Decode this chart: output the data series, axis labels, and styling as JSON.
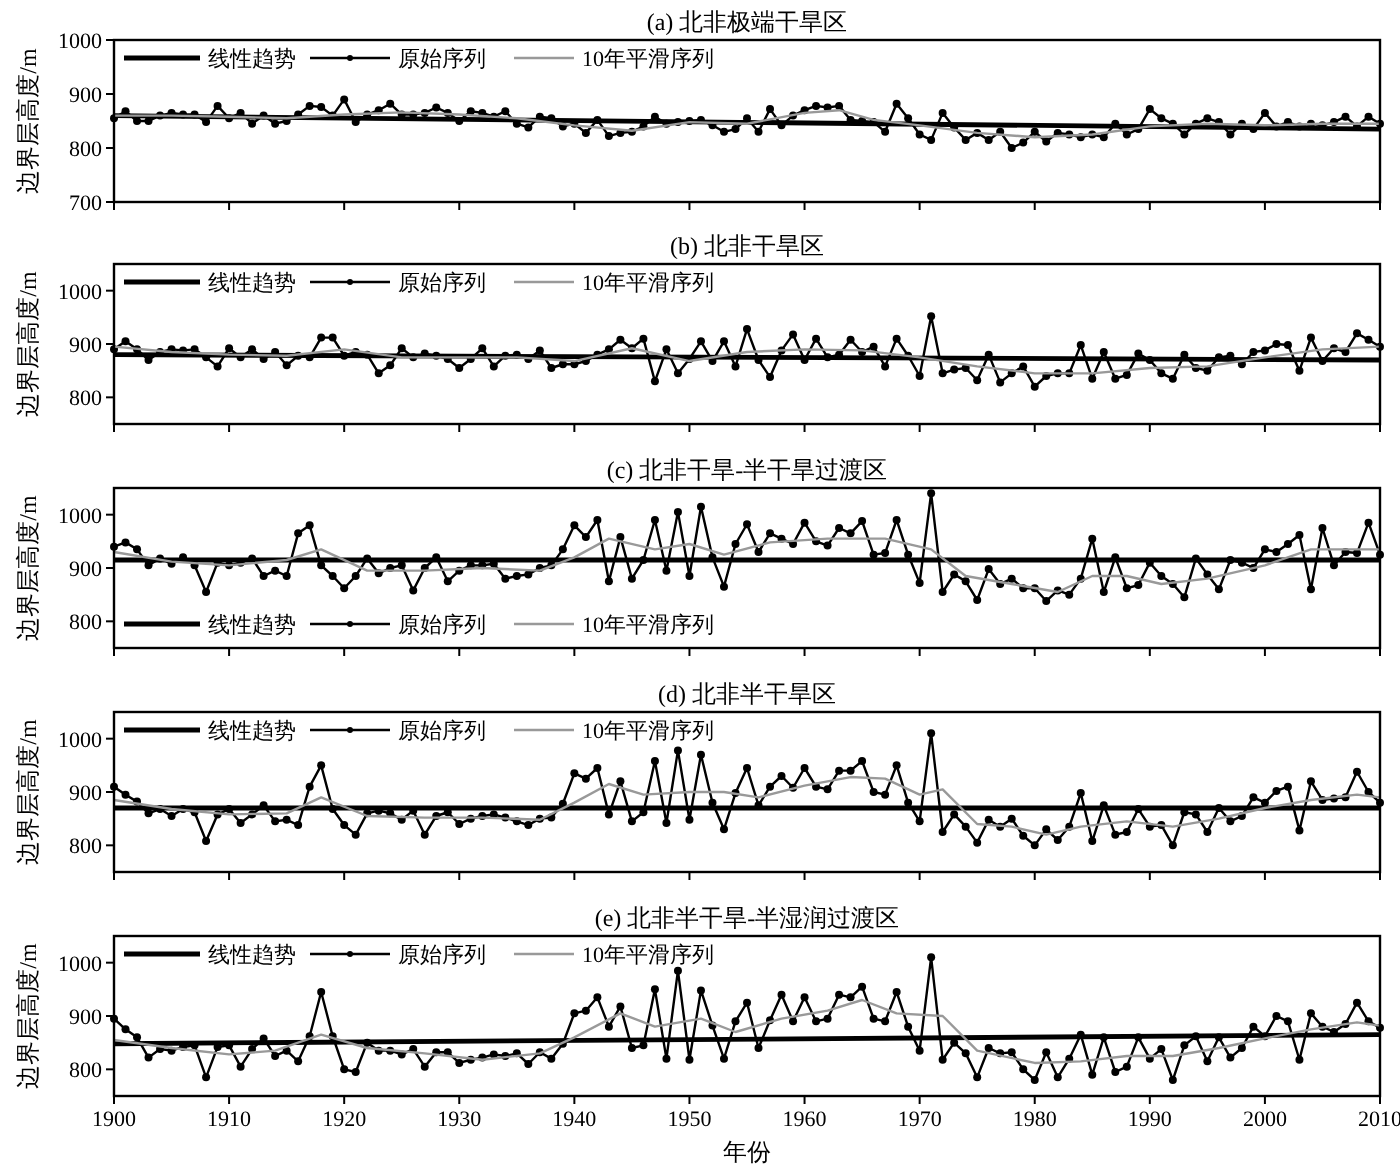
{
  "chart_data": [
    {
      "type": "line",
      "title": "(a) 北非极端干旱区",
      "ylabel": "边界层高度/m",
      "xlim": [
        1900,
        2010
      ],
      "xticks": [
        1900,
        1910,
        1920,
        1930,
        1940,
        1950,
        1960,
        1970,
        1980,
        1990,
        2000,
        2010
      ],
      "ylim": [
        700,
        1000
      ],
      "yticks": [
        700,
        800,
        900,
        1000
      ],
      "tick_labels": "y",
      "legend": "top left",
      "x": [
        1900,
        1901,
        1902,
        1903,
        1904,
        1905,
        1906,
        1907,
        1908,
        1909,
        1910,
        1911,
        1912,
        1913,
        1914,
        1915,
        1916,
        1917,
        1918,
        1919,
        1920,
        1921,
        1922,
        1923,
        1924,
        1925,
        1926,
        1927,
        1928,
        1929,
        1930,
        1931,
        1932,
        1933,
        1934,
        1935,
        1936,
        1937,
        1938,
        1939,
        1940,
        1941,
        1942,
        1943,
        1944,
        1945,
        1946,
        1947,
        1948,
        1949,
        1950,
        1951,
        1952,
        1953,
        1954,
        1955,
        1956,
        1957,
        1958,
        1959,
        1960,
        1961,
        1962,
        1963,
        1964,
        1965,
        1966,
        1967,
        1968,
        1969,
        1970,
        1971,
        1972,
        1973,
        1974,
        1975,
        1976,
        1977,
        1978,
        1979,
        1980,
        1981,
        1982,
        1983,
        1984,
        1985,
        1986,
        1987,
        1988,
        1989,
        1990,
        1991,
        1992,
        1993,
        1994,
        1995,
        1996,
        1997,
        1998,
        1999,
        2000,
        2001,
        2002,
        2003,
        2004,
        2005,
        2006,
        2007,
        2008,
        2009,
        2010
      ],
      "series": [
        {
          "name": "线性趋势",
          "color": "#000000",
          "marker": "none",
          "x": [
            1900,
            2010
          ],
          "values": [
            860,
            835
          ]
        },
        {
          "name": "原始序列",
          "color": "#000000",
          "marker": "circle",
          "values": [
            855,
            868,
            850,
            850,
            860,
            865,
            862,
            862,
            848,
            878,
            855,
            865,
            845,
            860,
            845,
            850,
            862,
            878,
            876,
            860,
            890,
            848,
            862,
            870,
            882,
            862,
            862,
            865,
            875,
            865,
            850,
            868,
            865,
            858,
            868,
            845,
            838,
            858,
            855,
            840,
            845,
            828,
            852,
            822,
            828,
            830,
            840,
            858,
            845,
            848,
            850,
            852,
            842,
            830,
            835,
            855,
            830,
            872,
            842,
            860,
            870,
            878,
            875,
            878,
            852,
            850,
            848,
            830,
            882,
            855,
            825,
            815,
            865,
            838,
            815,
            828,
            815,
            830,
            800,
            810,
            830,
            812,
            828,
            825,
            820,
            825,
            820,
            845,
            825,
            835,
            872,
            855,
            845,
            825,
            845,
            855,
            848,
            825,
            845,
            835,
            865,
            840,
            848,
            840,
            845,
            842,
            848,
            858,
            840,
            858,
            845
          ]
        },
        {
          "name": "10年平滑序列",
          "color": "#999999",
          "marker": "none",
          "x": [
            1900,
            1905,
            1910,
            1915,
            1920,
            1925,
            1930,
            1935,
            1940,
            1945,
            1950,
            1955,
            1960,
            1963,
            1966,
            1970,
            1975,
            1980,
            1985,
            1990,
            1995,
            2000,
            2005,
            2010
          ],
          "values": [
            860,
            860,
            858,
            855,
            862,
            866,
            862,
            855,
            842,
            832,
            848,
            845,
            865,
            870,
            852,
            842,
            828,
            820,
            825,
            840,
            845,
            842,
            845,
            845
          ]
        }
      ]
    },
    {
      "type": "line",
      "title": "(b) 北非干旱区",
      "ylabel": "边界层高度/m",
      "xlim": [
        1900,
        2010
      ],
      "xticks": [
        1900,
        1910,
        1920,
        1930,
        1940,
        1950,
        1960,
        1970,
        1980,
        1990,
        2000,
        2010
      ],
      "ylim": [
        750,
        1050
      ],
      "yticks": [
        800,
        900,
        1000
      ],
      "tick_labels": "y",
      "legend": "top left",
      "x": [
        1900,
        1901,
        1902,
        1903,
        1904,
        1905,
        1906,
        1907,
        1908,
        1909,
        1910,
        1911,
        1912,
        1913,
        1914,
        1915,
        1916,
        1917,
        1918,
        1919,
        1920,
        1921,
        1922,
        1923,
        1924,
        1925,
        1926,
        1927,
        1928,
        1929,
        1930,
        1931,
        1932,
        1933,
        1934,
        1935,
        1936,
        1937,
        1938,
        1939,
        1940,
        1941,
        1942,
        1943,
        1944,
        1945,
        1946,
        1947,
        1948,
        1949,
        1950,
        1951,
        1952,
        1953,
        1954,
        1955,
        1956,
        1957,
        1958,
        1959,
        1960,
        1961,
        1962,
        1963,
        1964,
        1965,
        1966,
        1967,
        1968,
        1969,
        1970,
        1971,
        1972,
        1973,
        1974,
        1975,
        1976,
        1977,
        1978,
        1979,
        1980,
        1981,
        1982,
        1983,
        1984,
        1985,
        1986,
        1987,
        1988,
        1989,
        1990,
        1991,
        1992,
        1993,
        1994,
        1995,
        1996,
        1997,
        1998,
        1999,
        2000,
        2001,
        2002,
        2003,
        2004,
        2005,
        2006,
        2007,
        2008,
        2009,
        2010
      ],
      "series": [
        {
          "name": "线性趋势",
          "color": "#000000",
          "marker": "none",
          "x": [
            1900,
            2010
          ],
          "values": [
            880,
            870
          ]
        },
        {
          "name": "原始序列",
          "color": "#000000",
          "marker": "circle",
          "values": [
            890,
            905,
            890,
            870,
            885,
            890,
            888,
            890,
            875,
            858,
            892,
            875,
            890,
            872,
            885,
            860,
            878,
            875,
            912,
            912,
            878,
            885,
            880,
            845,
            860,
            892,
            875,
            882,
            878,
            872,
            855,
            872,
            892,
            858,
            878,
            880,
            872,
            888,
            855,
            862,
            862,
            868,
            880,
            890,
            908,
            892,
            910,
            830,
            890,
            845,
            872,
            905,
            868,
            905,
            858,
            928,
            870,
            838,
            888,
            918,
            870,
            910,
            875,
            880,
            908,
            885,
            895,
            858,
            910,
            878,
            840,
            952,
            845,
            852,
            855,
            832,
            880,
            828,
            845,
            858,
            820,
            840,
            845,
            845,
            898,
            835,
            885,
            835,
            842,
            882,
            870,
            845,
            835,
            880,
            855,
            850,
            875,
            878,
            862,
            885,
            888,
            900,
            898,
            850,
            912,
            868,
            892,
            885,
            920,
            908,
            895
          ]
        },
        {
          "name": "10年平滑序列",
          "color": "#999999",
          "marker": "none",
          "x": [
            1900,
            1905,
            1910,
            1915,
            1920,
            1925,
            1930,
            1935,
            1940,
            1945,
            1950,
            1955,
            1960,
            1965,
            1970,
            1975,
            1980,
            1985,
            1990,
            1995,
            2000,
            2005,
            2010
          ],
          "values": [
            895,
            885,
            880,
            878,
            890,
            875,
            875,
            875,
            868,
            892,
            868,
            885,
            890,
            888,
            875,
            858,
            845,
            845,
            855,
            858,
            875,
            890,
            895
          ]
        }
      ]
    },
    {
      "type": "line",
      "title": "(c) 北非干旱-半干旱过渡区",
      "ylabel": "边界层高度/m",
      "xlim": [
        1900,
        2010
      ],
      "xticks": [
        1900,
        1910,
        1920,
        1930,
        1940,
        1950,
        1960,
        1970,
        1980,
        1990,
        2000,
        2010
      ],
      "ylim": [
        750,
        1050
      ],
      "yticks": [
        800,
        900,
        1000
      ],
      "tick_labels": "y",
      "legend": "bottom left",
      "x": [
        1900,
        1901,
        1902,
        1903,
        1904,
        1905,
        1906,
        1907,
        1908,
        1909,
        1910,
        1911,
        1912,
        1913,
        1914,
        1915,
        1916,
        1917,
        1918,
        1919,
        1920,
        1921,
        1922,
        1923,
        1924,
        1925,
        1926,
        1927,
        1928,
        1929,
        1930,
        1931,
        1932,
        1933,
        1934,
        1935,
        1936,
        1937,
        1938,
        1939,
        1940,
        1941,
        1942,
        1943,
        1944,
        1945,
        1946,
        1947,
        1948,
        1949,
        1950,
        1951,
        1952,
        1953,
        1954,
        1955,
        1956,
        1957,
        1958,
        1959,
        1960,
        1961,
        1962,
        1963,
        1964,
        1965,
        1966,
        1967,
        1968,
        1969,
        1970,
        1971,
        1972,
        1973,
        1974,
        1975,
        1976,
        1977,
        1978,
        1979,
        1980,
        1981,
        1982,
        1983,
        1984,
        1985,
        1986,
        1987,
        1988,
        1989,
        1990,
        1991,
        1992,
        1993,
        1994,
        1995,
        1996,
        1997,
        1998,
        1999,
        2000,
        2001,
        2002,
        2003,
        2004,
        2005,
        2006,
        2007,
        2008,
        2009,
        2010
      ],
      "series": [
        {
          "name": "线性趋势",
          "color": "#000000",
          "marker": "none",
          "x": [
            1900,
            2010
          ],
          "values": [
            915,
            915
          ]
        },
        {
          "name": "原始序列",
          "color": "#000000",
          "marker": "circle",
          "values": [
            940,
            948,
            935,
            905,
            918,
            908,
            920,
            905,
            855,
            910,
            905,
            910,
            918,
            885,
            895,
            885,
            965,
            980,
            905,
            885,
            862,
            885,
            918,
            890,
            900,
            905,
            858,
            900,
            920,
            875,
            895,
            905,
            905,
            908,
            880,
            885,
            888,
            900,
            905,
            935,
            980,
            958,
            990,
            875,
            958,
            880,
            915,
            990,
            895,
            1005,
            885,
            1015,
            920,
            865,
            945,
            982,
            930,
            965,
            955,
            945,
            985,
            950,
            942,
            975,
            965,
            988,
            925,
            928,
            990,
            925,
            872,
            1040,
            855,
            888,
            875,
            840,
            898,
            870,
            880,
            862,
            862,
            838,
            858,
            850,
            880,
            955,
            855,
            920,
            862,
            868,
            910,
            885,
            870,
            845,
            918,
            888,
            860,
            915,
            910,
            900,
            935,
            930,
            945,
            962,
            860,
            975,
            905,
            930,
            928,
            985,
            925
          ]
        },
        {
          "name": "10年平滑序列",
          "color": "#999999",
          "marker": "none",
          "x": [
            1900,
            1905,
            1910,
            1915,
            1918,
            1922,
            1927,
            1932,
            1937,
            1940,
            1943,
            1947,
            1950,
            1953,
            1957,
            1962,
            1967,
            1971,
            1974,
            1978,
            1982,
            1985,
            1988,
            1991,
            1995,
            2000,
            2004,
            2007,
            2010
          ],
          "values": [
            930,
            912,
            905,
            915,
            935,
            895,
            895,
            900,
            895,
            920,
            955,
            935,
            945,
            925,
            948,
            955,
            955,
            935,
            885,
            870,
            855,
            885,
            885,
            870,
            880,
            905,
            935,
            935,
            935
          ]
        }
      ]
    },
    {
      "type": "line",
      "title": "(d) 北非半干旱区",
      "ylabel": "边界层高度/m",
      "xlim": [
        1900,
        2010
      ],
      "xticks": [
        1900,
        1910,
        1920,
        1930,
        1940,
        1950,
        1960,
        1970,
        1980,
        1990,
        2000,
        2010
      ],
      "ylim": [
        750,
        1050
      ],
      "yticks": [
        800,
        900,
        1000
      ],
      "tick_labels": "y",
      "legend": "top left",
      "x": [
        1900,
        1901,
        1902,
        1903,
        1904,
        1905,
        1906,
        1907,
        1908,
        1909,
        1910,
        1911,
        1912,
        1913,
        1914,
        1915,
        1916,
        1917,
        1918,
        1919,
        1920,
        1921,
        1922,
        1923,
        1924,
        1925,
        1926,
        1927,
        1928,
        1929,
        1930,
        1931,
        1932,
        1933,
        1934,
        1935,
        1936,
        1937,
        1938,
        1939,
        1940,
        1941,
        1942,
        1943,
        1944,
        1945,
        1946,
        1947,
        1948,
        1949,
        1950,
        1951,
        1952,
        1953,
        1954,
        1955,
        1956,
        1957,
        1958,
        1959,
        1960,
        1961,
        1962,
        1963,
        1964,
        1965,
        1966,
        1967,
        1968,
        1969,
        1970,
        1971,
        1972,
        1973,
        1974,
        1975,
        1976,
        1977,
        1978,
        1979,
        1980,
        1981,
        1982,
        1983,
        1984,
        1985,
        1986,
        1987,
        1988,
        1989,
        1990,
        1991,
        1992,
        1993,
        1994,
        1995,
        1996,
        1997,
        1998,
        1999,
        2000,
        2001,
        2002,
        2003,
        2004,
        2005,
        2006,
        2007,
        2008,
        2009,
        2010
      ],
      "series": [
        {
          "name": "线性趋势",
          "color": "#000000",
          "marker": "none",
          "x": [
            1900,
            2010
          ],
          "values": [
            870,
            870
          ]
        },
        {
          "name": "原始序列",
          "color": "#000000",
          "marker": "circle",
          "values": [
            910,
            895,
            882,
            860,
            868,
            855,
            868,
            862,
            808,
            858,
            868,
            842,
            858,
            875,
            845,
            848,
            838,
            910,
            950,
            868,
            838,
            820,
            860,
            865,
            860,
            848,
            865,
            820,
            855,
            862,
            840,
            850,
            855,
            858,
            852,
            845,
            838,
            850,
            852,
            878,
            935,
            925,
            945,
            858,
            920,
            845,
            862,
            958,
            842,
            978,
            848,
            970,
            880,
            830,
            898,
            945,
            875,
            910,
            930,
            908,
            945,
            910,
            905,
            940,
            940,
            958,
            900,
            895,
            950,
            880,
            845,
            1010,
            825,
            858,
            835,
            805,
            848,
            835,
            850,
            818,
            800,
            830,
            810,
            835,
            898,
            808,
            875,
            820,
            825,
            868,
            835,
            838,
            800,
            862,
            858,
            825,
            870,
            845,
            855,
            890,
            880,
            902,
            910,
            828,
            920,
            885,
            888,
            890,
            938,
            900,
            880
          ]
        },
        {
          "name": "10年平滑序列",
          "color": "#999999",
          "marker": "none",
          "x": [
            1900,
            1905,
            1910,
            1915,
            1918,
            1922,
            1927,
            1932,
            1937,
            1940,
            1943,
            1946,
            1950,
            1953,
            1956,
            1960,
            1964,
            1967,
            1970,
            1972,
            1975,
            1978,
            1981,
            1984,
            1988,
            1992,
            1996,
            2000,
            2004,
            2008,
            2010
          ],
          "values": [
            885,
            868,
            858,
            860,
            890,
            855,
            852,
            852,
            848,
            880,
            915,
            895,
            900,
            900,
            890,
            912,
            928,
            925,
            895,
            905,
            840,
            835,
            820,
            835,
            845,
            835,
            850,
            870,
            885,
            895,
            890
          ]
        }
      ]
    },
    {
      "type": "line",
      "title": "(e) 北非半干旱-半湿润过渡区",
      "ylabel": "边界层高度/m",
      "xlabel": "年份",
      "xlim": [
        1900,
        2010
      ],
      "xticks": [
        1900,
        1910,
        1920,
        1930,
        1940,
        1950,
        1960,
        1970,
        1980,
        1990,
        2000,
        2010
      ],
      "ylim": [
        750,
        1050
      ],
      "yticks": [
        800,
        900,
        1000
      ],
      "legend": "top left",
      "x": [
        1900,
        1901,
        1902,
        1903,
        1904,
        1905,
        1906,
        1907,
        1908,
        1909,
        1910,
        1911,
        1912,
        1913,
        1914,
        1915,
        1916,
        1917,
        1918,
        1919,
        1920,
        1921,
        1922,
        1923,
        1924,
        1925,
        1926,
        1927,
        1928,
        1929,
        1930,
        1931,
        1932,
        1933,
        1934,
        1935,
        1936,
        1937,
        1938,
        1939,
        1940,
        1941,
        1942,
        1943,
        1944,
        1945,
        1946,
        1947,
        1948,
        1949,
        1950,
        1951,
        1952,
        1953,
        1954,
        1955,
        1956,
        1957,
        1958,
        1959,
        1960,
        1961,
        1962,
        1963,
        1964,
        1965,
        1966,
        1967,
        1968,
        1969,
        1970,
        1971,
        1972,
        1973,
        1974,
        1975,
        1976,
        1977,
        1978,
        1979,
        1980,
        1981,
        1982,
        1983,
        1984,
        1985,
        1986,
        1987,
        1988,
        1989,
        1990,
        1991,
        1992,
        1993,
        1994,
        1995,
        1996,
        1997,
        1998,
        1999,
        2000,
        2001,
        2002,
        2003,
        2004,
        2005,
        2006,
        2007,
        2008,
        2009,
        2010
      ],
      "series": [
        {
          "name": "线性趋势",
          "color": "#000000",
          "marker": "none",
          "x": [
            1900,
            2010
          ],
          "values": [
            848,
            865
          ]
        },
        {
          "name": "原始序列",
          "color": "#000000",
          "marker": "circle",
          "values": [
            895,
            875,
            860,
            822,
            838,
            835,
            842,
            845,
            785,
            842,
            845,
            805,
            838,
            858,
            825,
            835,
            815,
            862,
            945,
            862,
            800,
            795,
            850,
            835,
            835,
            828,
            838,
            805,
            832,
            832,
            812,
            818,
            822,
            828,
            825,
            830,
            810,
            832,
            820,
            848,
            905,
            910,
            935,
            880,
            918,
            840,
            845,
            950,
            820,
            985,
            818,
            948,
            882,
            820,
            890,
            925,
            840,
            892,
            940,
            890,
            935,
            890,
            895,
            940,
            935,
            955,
            895,
            890,
            945,
            880,
            835,
            1010,
            818,
            850,
            830,
            785,
            840,
            830,
            832,
            800,
            780,
            832,
            785,
            820,
            865,
            790,
            860,
            795,
            805,
            860,
            820,
            838,
            780,
            845,
            862,
            815,
            860,
            822,
            840,
            880,
            862,
            900,
            890,
            818,
            905,
            880,
            870,
            885,
            925,
            890,
            878
          ]
        },
        {
          "name": "10年平滑序列",
          "color": "#999999",
          "marker": "none",
          "x": [
            1900,
            1905,
            1910,
            1914,
            1918,
            1922,
            1927,
            1932,
            1937,
            1940,
            1944,
            1947,
            1951,
            1954,
            1958,
            1962,
            1965,
            1968,
            1972,
            1975,
            1980,
            1984,
            1988,
            1992,
            1996,
            2000,
            2004,
            2008,
            2010
          ],
          "values": [
            855,
            840,
            828,
            835,
            865,
            840,
            830,
            818,
            830,
            860,
            905,
            880,
            895,
            870,
            895,
            910,
            930,
            905,
            900,
            835,
            812,
            815,
            825,
            825,
            840,
            858,
            875,
            888,
            882
          ]
        }
      ]
    }
  ]
}
